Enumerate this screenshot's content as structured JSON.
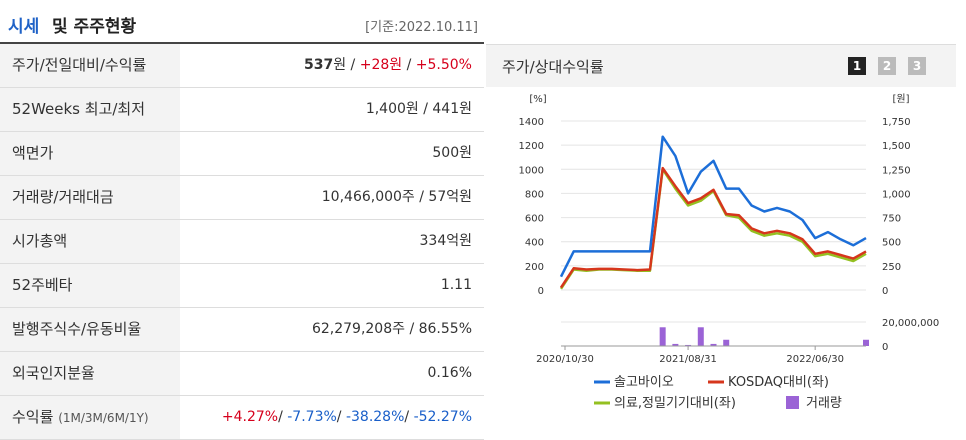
{
  "header": {
    "title_blue": "시세",
    "title_black": "및 주주현황",
    "date": "[기준:2022.10.11]"
  },
  "rows": [
    {
      "label": "주가/전일대비/수익률"
    },
    {
      "label": "52Weeks 최고/최저",
      "value": "1,400원 / 441원"
    },
    {
      "label": "액면가",
      "value": "500원"
    },
    {
      "label": "거래량/거래대금",
      "value": "10,466,000주 / 57억원"
    },
    {
      "label": "시가총액",
      "value": "334억원"
    },
    {
      "label": "52주베타",
      "value": "1.11"
    },
    {
      "label": "발행주식수/유동비율",
      "value": "62,279,208주 / 86.55%"
    },
    {
      "label": "외국인지분율",
      "value": "0.16%"
    },
    {
      "label": "수익률",
      "label_small": "(1M/3M/6M/1Y)"
    }
  ],
  "price": {
    "current": "537",
    "unit": "원",
    "sep1": " / ",
    "change": "+28원",
    "sep2": " / ",
    "pct": "+5.50%"
  },
  "returns": {
    "m1": "+4.27%",
    "sep": "/ ",
    "m3": "-7.73%",
    "m6": "-38.28%",
    "y1": "-52.27%"
  },
  "chart_panel": {
    "title": "주가/상대수익률",
    "pages": [
      "1",
      "2",
      "3"
    ],
    "active_page": 0
  },
  "chart_data": {
    "type": "line",
    "left_axis": {
      "unit": "[%]",
      "ticks": [
        "1400",
        "1200",
        "1000",
        "800",
        "600",
        "400",
        "200",
        "0"
      ],
      "ylim": [
        0,
        1400
      ]
    },
    "right_axis": {
      "unit": "[원]",
      "ticks": [
        "1,750",
        "1,500",
        "1,250",
        "1,000",
        "750",
        "500",
        "250",
        "0"
      ],
      "ylim": [
        0,
        1750
      ]
    },
    "volume_axis": {
      "ticks": [
        "20,000,000",
        "0"
      ],
      "ylim": [
        0,
        25000000
      ]
    },
    "x_ticks": [
      "2020/10/30",
      "2021/08/31",
      "2022/06/30"
    ],
    "series": [
      {
        "name": "솔고바이오",
        "color": "#1c6ed8",
        "values": [
          110,
          320,
          320,
          320,
          320,
          320,
          320,
          320,
          1270,
          1110,
          800,
          980,
          1070,
          840,
          840,
          700,
          650,
          680,
          650,
          580,
          430,
          480,
          420,
          370,
          430
        ]
      },
      {
        "name": "KOSDAQ대비(좌)",
        "color": "#d6361c",
        "values": [
          20,
          180,
          170,
          175,
          175,
          170,
          165,
          170,
          1010,
          860,
          720,
          760,
          830,
          630,
          620,
          510,
          470,
          490,
          470,
          420,
          300,
          320,
          290,
          260,
          320
        ]
      },
      {
        "name": "의료,정밀기기대비(좌)",
        "color": "#94c021",
        "values": [
          10,
          170,
          160,
          170,
          170,
          165,
          160,
          160,
          1000,
          840,
          700,
          740,
          820,
          620,
          600,
          490,
          450,
          470,
          450,
          400,
          280,
          300,
          270,
          240,
          300
        ]
      }
    ],
    "volume": {
      "name": "거래량",
      "color": "#9b63d6",
      "values": [
        0,
        0,
        0,
        0,
        0,
        0,
        0,
        0,
        18000000,
        2000000,
        1000000,
        18000000,
        2000000,
        6000000,
        0,
        0,
        0,
        0,
        0,
        0,
        0,
        0,
        0,
        0,
        6000000
      ]
    }
  }
}
